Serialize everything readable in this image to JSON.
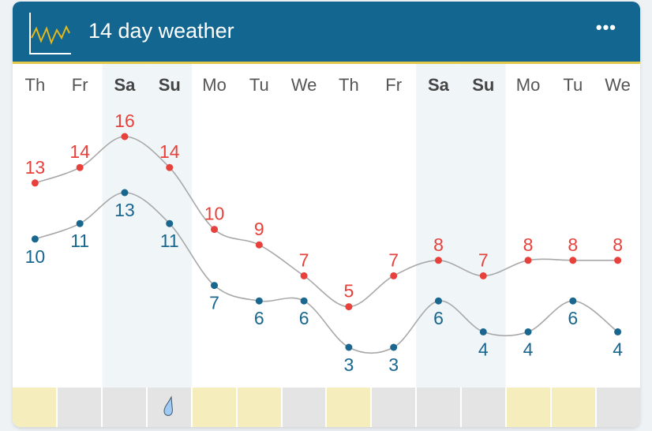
{
  "header": {
    "title": "14 day weather",
    "more_label": "•••",
    "icon": "chart-line-icon"
  },
  "colors": {
    "header": "#12668f",
    "accent": "#e2c94a",
    "high": "#e8413c",
    "low": "#19668f",
    "sunny": "#f5eebc",
    "cloudy": "#e4e4e4",
    "weekend": "#f0f5f8"
  },
  "days": [
    {
      "label": "Th",
      "weekend": false,
      "high": 13,
      "low": 10,
      "condition": "sunny"
    },
    {
      "label": "Fr",
      "weekend": false,
      "high": 14,
      "low": 11,
      "condition": "cloudy"
    },
    {
      "label": "Sa",
      "weekend": true,
      "high": 16,
      "low": 13,
      "condition": "cloudy"
    },
    {
      "label": "Su",
      "weekend": true,
      "high": 14,
      "low": 11,
      "condition": "rain"
    },
    {
      "label": "Mo",
      "weekend": false,
      "high": 10,
      "low": 7,
      "condition": "sunny"
    },
    {
      "label": "Tu",
      "weekend": false,
      "high": 9,
      "low": 6,
      "condition": "sunny"
    },
    {
      "label": "We",
      "weekend": false,
      "high": 7,
      "low": 6,
      "condition": "cloudy"
    },
    {
      "label": "Th",
      "weekend": false,
      "high": 5,
      "low": 3,
      "condition": "sunny"
    },
    {
      "label": "Fr",
      "weekend": false,
      "high": 7,
      "low": 3,
      "condition": "cloudy"
    },
    {
      "label": "Sa",
      "weekend": true,
      "high": 8,
      "low": 6,
      "condition": "cloudy"
    },
    {
      "label": "Su",
      "weekend": true,
      "high": 7,
      "low": 4,
      "condition": "cloudy"
    },
    {
      "label": "Mo",
      "weekend": false,
      "high": 8,
      "low": 4,
      "condition": "sunny"
    },
    {
      "label": "Tu",
      "weekend": false,
      "high": 8,
      "low": 6,
      "condition": "sunny"
    },
    {
      "label": "We",
      "weekend": false,
      "high": 8,
      "low": 4,
      "condition": "cloudy"
    }
  ]
}
